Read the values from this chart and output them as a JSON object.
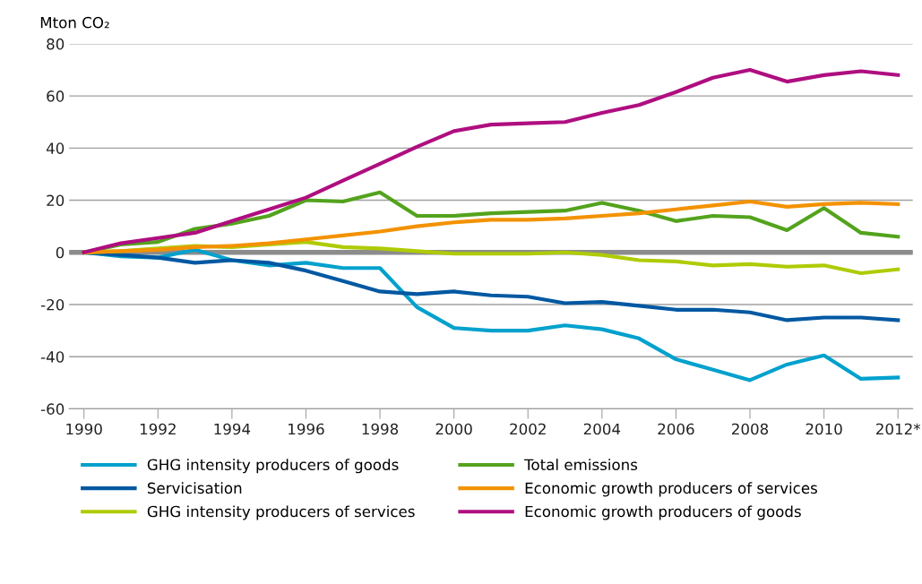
{
  "chart_data": {
    "type": "line",
    "ylabel": "Mton CO₂",
    "x": [
      1990,
      1991,
      1992,
      1993,
      1994,
      1995,
      1996,
      1997,
      1998,
      1999,
      2000,
      2001,
      2002,
      2003,
      2004,
      2005,
      2006,
      2007,
      2008,
      2009,
      2010,
      2011,
      2012
    ],
    "series": [
      {
        "name": "GHG intensity producers of goods",
        "color": "#00a1cd",
        "values": [
          0,
          -1.5,
          -2,
          1,
          -3,
          -5,
          -4,
          -6,
          -6,
          -21,
          -29,
          -30,
          -30,
          -28,
          -29.5,
          -33,
          -41,
          -45,
          -49,
          -43,
          -39.5,
          -48.5,
          -48
        ]
      },
      {
        "name": "Servicisation",
        "color": "#0058a2",
        "values": [
          0,
          -1,
          -2,
          -4,
          -3,
          -4,
          -7,
          -11,
          -15,
          -16,
          -15,
          -16.5,
          -17,
          -19.5,
          -19,
          -20.5,
          -22,
          -22,
          -23,
          -26,
          -25,
          -25,
          -26
        ]
      },
      {
        "name": "GHG intensity producers of services",
        "color": "#afcb05",
        "values": [
          0,
          0.5,
          1.5,
          2.5,
          2,
          3,
          4,
          2,
          1.5,
          0.5,
          -0.5,
          -0.5,
          -0.5,
          0,
          -1,
          -3,
          -3.5,
          -5,
          -4.5,
          -5.5,
          -5,
          -8,
          -6.5
        ]
      },
      {
        "name": "Total emissions",
        "color": "#53a31d",
        "values": [
          0,
          3,
          4,
          9,
          11,
          14,
          20,
          19.5,
          23,
          14,
          14,
          15,
          15.5,
          16,
          19,
          16,
          12,
          14,
          13.5,
          8.5,
          17,
          7.5,
          6
        ]
      },
      {
        "name": "Economic growth producers of services",
        "color": "#f39200",
        "values": [
          0,
          0.5,
          1,
          2,
          2.5,
          3.5,
          5,
          6.5,
          8,
          10,
          11.5,
          12.5,
          12.5,
          13,
          14,
          15,
          16.5,
          18,
          19.5,
          17.5,
          18.5,
          19,
          18.5
        ]
      },
      {
        "name": "Economic growth producers of goods",
        "color": "#af0e80",
        "values": [
          0,
          3.5,
          5.5,
          7.5,
          12,
          16.5,
          21,
          27.5,
          34,
          40.5,
          46.5,
          49,
          49.5,
          50,
          53.5,
          56.5,
          61.5,
          67,
          70,
          65.5,
          68,
          69.5,
          68
        ]
      }
    ],
    "xlim": [
      1989.6,
      2012.4
    ],
    "xticks": [
      1990,
      1992,
      1994,
      1996,
      1998,
      2000,
      2002,
      2004,
      2006,
      2008,
      2010,
      {
        "value": 2012,
        "label": "2012*"
      }
    ],
    "ylim": [
      -60,
      80
    ],
    "yticks": [
      -60,
      -40,
      -20,
      0,
      20,
      40,
      60,
      80
    ],
    "grid": "y",
    "legend": "bottom",
    "ref_lines": [
      {
        "axis": "y",
        "value": 0,
        "color": "#8c8c8c"
      }
    ]
  }
}
